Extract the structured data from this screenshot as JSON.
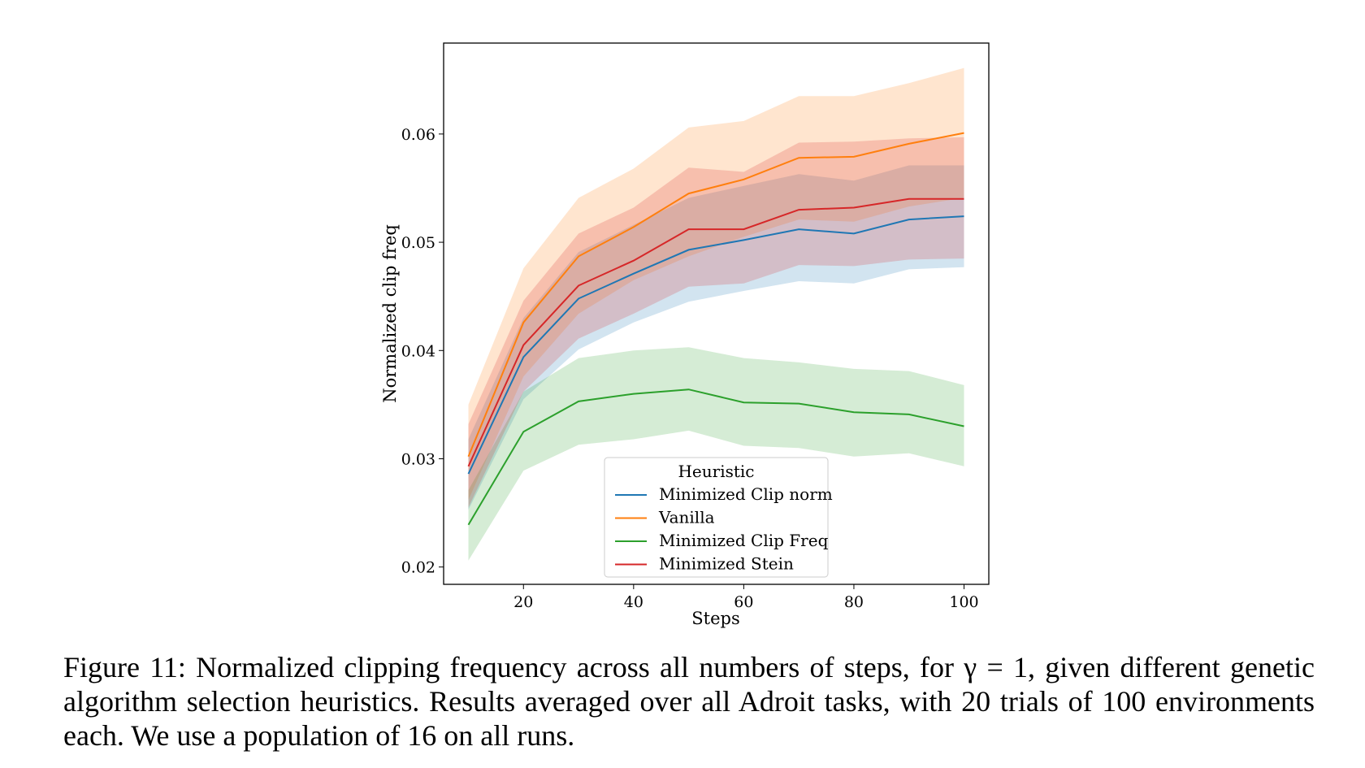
{
  "chart_data": {
    "type": "line",
    "xlabel": "Steps",
    "ylabel": "Normalized clip freq",
    "xlim": [
      5.5,
      104.5
    ],
    "ylim": [
      0.0184,
      0.0684
    ],
    "xticks": [
      20,
      40,
      60,
      80,
      100
    ],
    "yticks": [
      0.02,
      0.03,
      0.04,
      0.05,
      0.06
    ],
    "ytick_labels": [
      "0.02",
      "0.03",
      "0.04",
      "0.05",
      "0.06"
    ],
    "x": [
      10,
      20,
      30,
      40,
      50,
      60,
      70,
      80,
      90,
      100
    ],
    "legend": {
      "title": "Heuristic",
      "placement": "lower-center"
    },
    "series": [
      {
        "name": "Minimized Clip norm",
        "color": "#1f77b4",
        "values": [
          0.0286,
          0.0394,
          0.0448,
          0.0471,
          0.0493,
          0.0502,
          0.0512,
          0.0508,
          0.0521,
          0.0524
        ],
        "lower": [
          0.0253,
          0.0355,
          0.0401,
          0.0426,
          0.0445,
          0.0455,
          0.0464,
          0.0462,
          0.0475,
          0.0477
        ],
        "upper": [
          0.0318,
          0.043,
          0.0491,
          0.0516,
          0.0541,
          0.0552,
          0.0563,
          0.0557,
          0.0571,
          0.0571
        ]
      },
      {
        "name": "Vanilla",
        "color": "#ff7f0e",
        "values": [
          0.0302,
          0.0426,
          0.0487,
          0.0514,
          0.0545,
          0.0558,
          0.0578,
          0.0579,
          0.0591,
          0.0601
        ],
        "lower": [
          0.0262,
          0.0376,
          0.0434,
          0.0465,
          0.0487,
          0.0505,
          0.0521,
          0.0519,
          0.0533,
          0.0541
        ],
        "upper": [
          0.035,
          0.0476,
          0.0541,
          0.0568,
          0.0606,
          0.0612,
          0.0635,
          0.0635,
          0.0647,
          0.0661
        ]
      },
      {
        "name": "Minimized Clip Freq",
        "color": "#2ca02c",
        "values": [
          0.0239,
          0.0325,
          0.0353,
          0.036,
          0.0364,
          0.0352,
          0.0351,
          0.0343,
          0.0341,
          0.033
        ],
        "lower": [
          0.0206,
          0.0289,
          0.0313,
          0.0318,
          0.0326,
          0.0312,
          0.031,
          0.0302,
          0.0305,
          0.0293
        ],
        "upper": [
          0.0271,
          0.0362,
          0.0393,
          0.04,
          0.0403,
          0.0393,
          0.0389,
          0.0383,
          0.0381,
          0.0368
        ]
      },
      {
        "name": "Minimized Stein",
        "color": "#d62728",
        "values": [
          0.0293,
          0.0405,
          0.046,
          0.0483,
          0.0512,
          0.0512,
          0.053,
          0.0532,
          0.054,
          0.054
        ],
        "lower": [
          0.0255,
          0.0362,
          0.0411,
          0.0434,
          0.0459,
          0.0462,
          0.0479,
          0.0478,
          0.0484,
          0.0485
        ],
        "upper": [
          0.0332,
          0.0446,
          0.0508,
          0.0532,
          0.0569,
          0.0565,
          0.0592,
          0.0593,
          0.0596,
          0.0597
        ]
      }
    ]
  },
  "caption": "Figure 11: Normalized clipping frequency across all numbers of steps, for γ = 1, given different genetic algorithm selection heuristics. Results averaged over all Adroit tasks, with 20 trials of 100 environments each. We use a population of 16 on all runs."
}
